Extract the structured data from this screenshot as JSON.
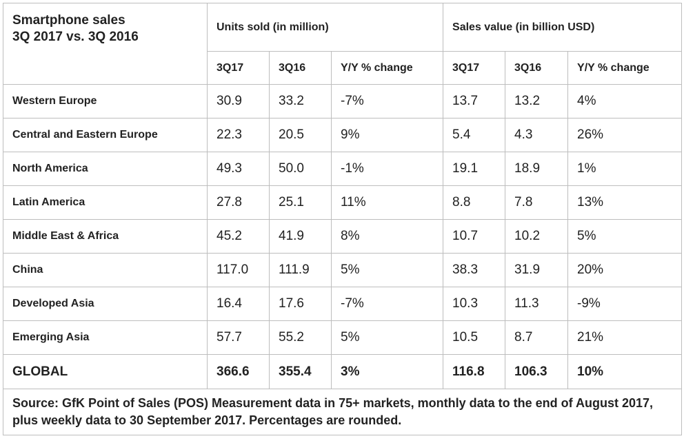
{
  "title": {
    "line1": "Smartphone sales",
    "line2": "3Q 2017 vs. 3Q 2016"
  },
  "groups": {
    "units": "Units sold (in million)",
    "value": "Sales value (in billion USD)"
  },
  "subheaders": [
    "3Q17",
    "3Q16",
    "Y/Y % change",
    "3Q17",
    "3Q16",
    "Y/Y % change"
  ],
  "rows": [
    {
      "region": "Western Europe",
      "cells": [
        "30.9",
        "33.2",
        "-7%",
        "13.7",
        "13.2",
        "4%"
      ]
    },
    {
      "region": "Central and Eastern Europe",
      "cells": [
        "22.3",
        "20.5",
        "9%",
        "5.4",
        "4.3",
        "26%"
      ]
    },
    {
      "region": "North America",
      "cells": [
        "49.3",
        "50.0",
        "-1%",
        "19.1",
        "18.9",
        "1%"
      ]
    },
    {
      "region": "Latin America",
      "cells": [
        "27.8",
        "25.1",
        "11%",
        "8.8",
        "7.8",
        "13%"
      ]
    },
    {
      "region": "Middle East & Africa",
      "cells": [
        "45.2",
        "41.9",
        "8%",
        "10.7",
        "10.2",
        "5%"
      ]
    },
    {
      "region": "China",
      "cells": [
        "117.0",
        "111.9",
        "5%",
        "38.3",
        "31.9",
        "20%"
      ]
    },
    {
      "region": "Developed Asia",
      "cells": [
        "16.4",
        "17.6",
        "-7%",
        "10.3",
        "11.3",
        "-9%"
      ]
    },
    {
      "region": "Emerging Asia",
      "cells": [
        "57.7",
        "55.2",
        "5%",
        "10.5",
        "8.7",
        "21%"
      ]
    }
  ],
  "global": {
    "region": "GLOBAL",
    "cells": [
      "366.6",
      "355.4",
      "3%",
      "116.8",
      "106.3",
      "10%"
    ]
  },
  "source": "Source: GfK Point of Sales (POS) Measurement data in 75+ markets, monthly data to the end of August 2017, plus weekly data to 30 September 2017. Percentages are rounded."
}
